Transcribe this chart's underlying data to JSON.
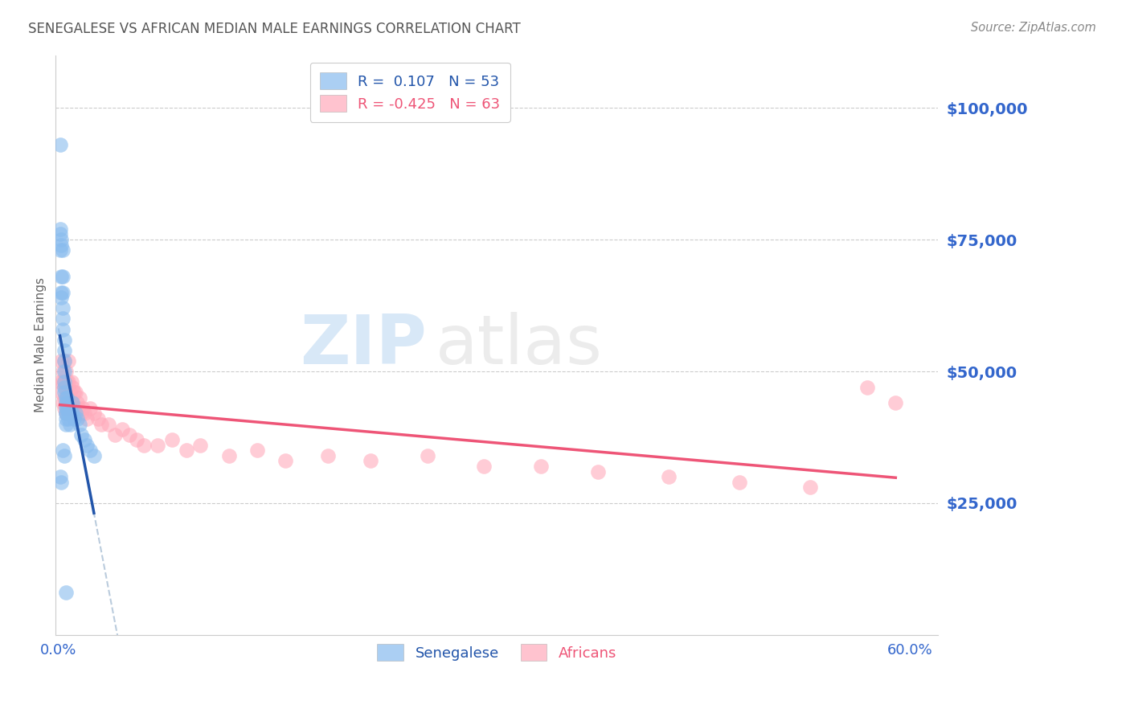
{
  "title": "SENEGALESE VS AFRICAN MEDIAN MALE EARNINGS CORRELATION CHART",
  "source": "Source: ZipAtlas.com",
  "ylabel": "Median Male Earnings",
  "ytick_labels": [
    "$25,000",
    "$50,000",
    "$75,000",
    "$100,000"
  ],
  "ytick_values": [
    25000,
    50000,
    75000,
    100000
  ],
  "ymin": 0,
  "ymax": 110000,
  "xmin": -0.002,
  "xmax": 0.62,
  "watermark_zip": "ZIP",
  "watermark_atlas": "atlas",
  "bg_color": "#ffffff",
  "grid_color": "#cccccc",
  "blue_scatter_color": "#88bbee",
  "pink_scatter_color": "#ffaabb",
  "blue_line_color": "#2255aa",
  "pink_line_color": "#ee5577",
  "blue_dashed_color": "#bbccdd",
  "title_color": "#555555",
  "source_color": "#888888",
  "label_color": "#3366cc",
  "legend_r1_text": "R =  0.107   N = 53",
  "legend_r2_text": "R = -0.425   N = 63",
  "senegalese_x": [
    0.001,
    0.001,
    0.001,
    0.001,
    0.002,
    0.002,
    0.002,
    0.002,
    0.002,
    0.003,
    0.003,
    0.003,
    0.003,
    0.003,
    0.003,
    0.004,
    0.004,
    0.004,
    0.004,
    0.004,
    0.004,
    0.004,
    0.005,
    0.005,
    0.005,
    0.005,
    0.005,
    0.005,
    0.005,
    0.006,
    0.006,
    0.006,
    0.007,
    0.007,
    0.008,
    0.008,
    0.009,
    0.01,
    0.01,
    0.011,
    0.012,
    0.013,
    0.015,
    0.016,
    0.018,
    0.02,
    0.022,
    0.025,
    0.001,
    0.002,
    0.003,
    0.004,
    0.005
  ],
  "senegalese_y": [
    93000,
    77000,
    76000,
    73000,
    75000,
    74000,
    68000,
    65000,
    64000,
    73000,
    68000,
    65000,
    62000,
    60000,
    58000,
    56000,
    54000,
    52000,
    50000,
    48000,
    47000,
    46000,
    45000,
    44000,
    43000,
    42000,
    42000,
    41000,
    40000,
    45000,
    44000,
    43000,
    42000,
    41000,
    43000,
    40000,
    42000,
    44000,
    42000,
    41000,
    42000,
    41000,
    40000,
    38000,
    37000,
    36000,
    35000,
    34000,
    30000,
    29000,
    35000,
    34000,
    8000
  ],
  "africans_x": [
    0.001,
    0.002,
    0.002,
    0.003,
    0.003,
    0.003,
    0.004,
    0.004,
    0.004,
    0.004,
    0.005,
    0.005,
    0.005,
    0.005,
    0.006,
    0.006,
    0.007,
    0.007,
    0.007,
    0.008,
    0.008,
    0.009,
    0.009,
    0.01,
    0.01,
    0.011,
    0.012,
    0.012,
    0.013,
    0.014,
    0.015,
    0.016,
    0.017,
    0.018,
    0.02,
    0.022,
    0.025,
    0.028,
    0.03,
    0.035,
    0.04,
    0.045,
    0.05,
    0.055,
    0.06,
    0.07,
    0.08,
    0.09,
    0.1,
    0.12,
    0.14,
    0.16,
    0.19,
    0.22,
    0.26,
    0.3,
    0.34,
    0.38,
    0.43,
    0.48,
    0.53,
    0.57,
    0.59
  ],
  "africans_y": [
    48000,
    52000,
    46000,
    50000,
    48000,
    44000,
    52000,
    48000,
    45000,
    43000,
    50000,
    47000,
    44000,
    42000,
    48000,
    45000,
    52000,
    48000,
    45000,
    46000,
    43000,
    48000,
    44000,
    47000,
    43000,
    46000,
    46000,
    43000,
    44000,
    43000,
    45000,
    42000,
    43000,
    42000,
    41000,
    43000,
    42000,
    41000,
    40000,
    40000,
    38000,
    39000,
    38000,
    37000,
    36000,
    36000,
    37000,
    35000,
    36000,
    34000,
    35000,
    33000,
    34000,
    33000,
    34000,
    32000,
    32000,
    31000,
    30000,
    29000,
    28000,
    47000,
    44000
  ]
}
